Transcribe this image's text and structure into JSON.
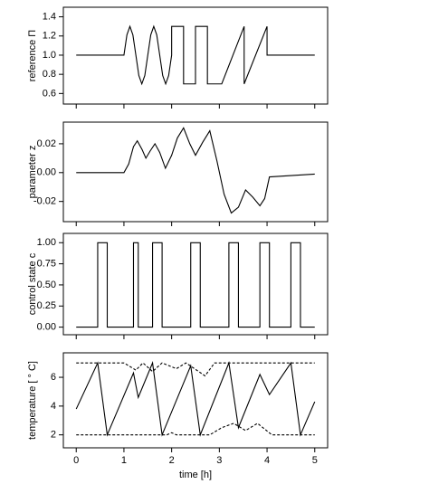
{
  "chart_data": [
    {
      "type": "line",
      "ylabel": "reference Π",
      "xlim": [
        -0.27,
        5.27
      ],
      "xticks": [
        0,
        1,
        2,
        3,
        4,
        5
      ],
      "ylim": [
        0.49,
        1.5
      ],
      "yticks": [
        0.6,
        0.8,
        {
          "value": 1.0,
          "label": "1.0"
        },
        1.2,
        1.4
      ],
      "series": [
        {
          "color": "#000000",
          "dashed": false,
          "x": [
            0,
            1,
            1.0625,
            1.125,
            1.1875,
            1.25,
            1.3125,
            1.375,
            1.4375,
            1.5,
            1.5625,
            1.625,
            1.6875,
            1.75,
            1.8125,
            1.875,
            1.9375,
            2,
            2,
            2.25,
            2.25,
            2.5,
            2.5,
            2.75,
            2.75,
            3.05,
            3.52,
            3.52,
            4.0,
            4.0,
            5
          ],
          "values": [
            1,
            1,
            1.212,
            1.3,
            1.212,
            1,
            0.788,
            0.7,
            0.788,
            1,
            1.212,
            1.3,
            1.212,
            1,
            0.788,
            0.7,
            0.788,
            1,
            1.3,
            1.3,
            0.7,
            0.7,
            1.3,
            1.3,
            0.7,
            0.7,
            1.3,
            0.7,
            1.3,
            1.0,
            1.0
          ]
        }
      ]
    },
    {
      "type": "line",
      "ylabel": "parameter z",
      "xlim": [
        -0.27,
        5.27
      ],
      "xticks": [
        0,
        1,
        2,
        3,
        4,
        5
      ],
      "ylim": [
        -0.034,
        0.035
      ],
      "yticks": [
        -0.02,
        {
          "value": 0,
          "label": "0.00"
        },
        0.02
      ],
      "series": [
        {
          "color": "#000000",
          "dashed": false,
          "x": [
            0,
            1,
            1.1,
            1.2,
            1.28,
            1.38,
            1.46,
            1.55,
            1.65,
            1.75,
            1.87,
            2.0,
            2.12,
            2.25,
            2.38,
            2.5,
            2.65,
            2.8,
            2.95,
            3.1,
            3.25,
            3.4,
            3.55,
            3.7,
            3.85,
            3.95,
            4.05,
            5
          ],
          "values": [
            0,
            0,
            0.006,
            0.018,
            0.022,
            0.016,
            0.01,
            0.015,
            0.02,
            0.014,
            0.003,
            0.012,
            0.024,
            0.031,
            0.02,
            0.012,
            0.021,
            0.029,
            0.008,
            -0.015,
            -0.028,
            -0.024,
            -0.012,
            -0.017,
            -0.023,
            -0.018,
            -0.003,
            -0.001
          ]
        }
      ]
    },
    {
      "type": "line",
      "ylabel": "control state c",
      "xlim": [
        -0.27,
        5.27
      ],
      "xticks": [
        0,
        1,
        2,
        3,
        4,
        5
      ],
      "ylim": [
        -0.09,
        1.11
      ],
      "yticks": [
        {
          "value": 0,
          "label": "0.00"
        },
        0.25,
        {
          "value": 0.5,
          "label": "0.50"
        },
        0.75,
        {
          "value": 1,
          "label": "1.00"
        }
      ],
      "series": [
        {
          "color": "#000000",
          "dashed": false,
          "x": [
            0,
            0.45,
            0.45,
            0.65,
            0.65,
            1.2,
            1.2,
            1.3,
            1.3,
            1.6,
            1.6,
            1.8,
            1.8,
            2.4,
            2.4,
            2.6,
            2.6,
            3.2,
            3.2,
            3.4,
            3.4,
            3.85,
            3.85,
            4.05,
            4.05,
            4.5,
            4.5,
            4.7,
            4.7,
            5
          ],
          "values": [
            0,
            0,
            1,
            1,
            0,
            0,
            1,
            1,
            0,
            0,
            1,
            1,
            0,
            0,
            1,
            1,
            0,
            0,
            1,
            1,
            0,
            0,
            1,
            1,
            0,
            0,
            1,
            1,
            0,
            0
          ]
        }
      ]
    },
    {
      "type": "line",
      "ylabel": "temperature [ ° C]",
      "xlabel": "time [h]",
      "xlim": [
        -0.27,
        5.27
      ],
      "xticks": [
        0,
        1,
        2,
        3,
        4,
        5
      ],
      "ylim": [
        1.1,
        7.7
      ],
      "yticks": [
        2,
        4,
        6
      ],
      "series": [
        {
          "color": "#000000",
          "dashed": false,
          "x": [
            0,
            0.45,
            0.65,
            1.2,
            1.3,
            1.6,
            1.8,
            2.4,
            2.6,
            3.2,
            3.4,
            3.85,
            4.05,
            4.5,
            4.7,
            5
          ],
          "values": [
            3.8,
            7,
            2,
            6.3,
            4.6,
            7,
            2,
            6.8,
            2,
            7,
            2.5,
            6.2,
            4.8,
            7,
            2,
            4.3
          ]
        },
        {
          "color": "#000000",
          "dashed": true,
          "x": [
            0,
            1,
            1.25,
            1.4,
            1.6,
            1.8,
            2.1,
            2.3,
            2.7,
            2.9,
            5
          ],
          "values": [
            7,
            7,
            6.5,
            7,
            6.4,
            7,
            6.6,
            7,
            6.1,
            7,
            7
          ]
        },
        {
          "color": "#000000",
          "dashed": true,
          "x": [
            0,
            1.9,
            2.0,
            2.1,
            2.8,
            3.05,
            3.3,
            3.55,
            3.8,
            4.1,
            5
          ],
          "values": [
            2,
            2,
            2.15,
            2,
            2,
            2.5,
            2.8,
            2.3,
            2.8,
            2,
            2
          ]
        }
      ]
    }
  ]
}
